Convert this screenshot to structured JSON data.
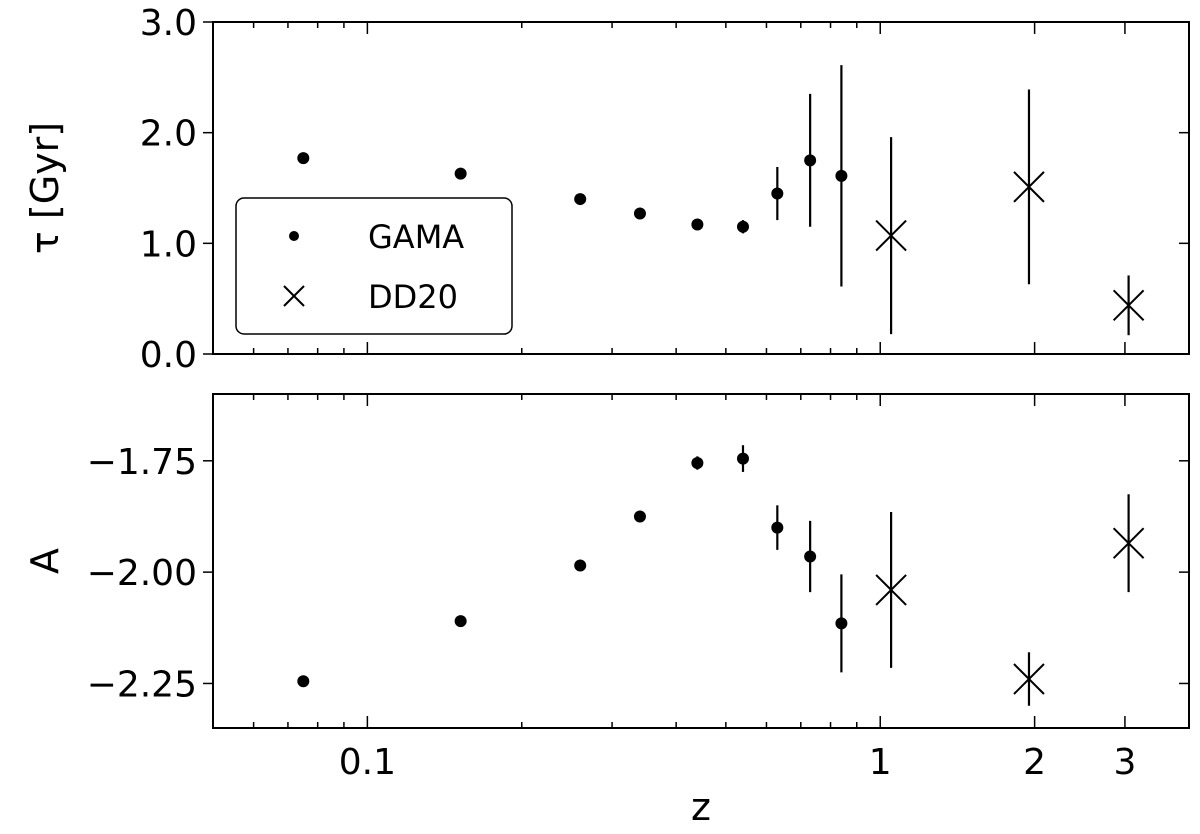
{
  "chart_data": {
    "type": "scatter",
    "x_axis": {
      "label": "z",
      "scale": "log",
      "range": [
        0.05,
        4.0
      ],
      "ticks": [
        {
          "value": 0.1,
          "label": "0.1"
        },
        {
          "value": 1,
          "label": "1"
        },
        {
          "value": 2,
          "label": "2"
        },
        {
          "value": 3,
          "label": "3"
        }
      ]
    },
    "legend": {
      "placement": "center-left of top panel",
      "entries": [
        {
          "label": "GAMA",
          "marker": "dot"
        },
        {
          "label": "DD20",
          "marker": "x"
        }
      ]
    },
    "panels": [
      {
        "ylabel": "τ [Gyr]",
        "ylim": [
          0.0,
          3.0
        ],
        "yticks": [
          {
            "value": 0.0,
            "label": "0.0"
          },
          {
            "value": 1.0,
            "label": "1.0"
          },
          {
            "value": 2.0,
            "label": "2.0"
          },
          {
            "value": 3.0,
            "label": "3.0"
          }
        ],
        "series": [
          {
            "name": "GAMA",
            "marker": "dot",
            "points": [
              {
                "x": 0.075,
                "y": 1.77,
                "err": 0.0
              },
              {
                "x": 0.152,
                "y": 1.63,
                "err": 0.0
              },
              {
                "x": 0.26,
                "y": 1.4,
                "err": 0.0
              },
              {
                "x": 0.34,
                "y": 1.27,
                "err": 0.0
              },
              {
                "x": 0.44,
                "y": 1.17,
                "err": 0.0
              },
              {
                "x": 0.54,
                "y": 1.15,
                "err": 0.06
              },
              {
                "x": 0.63,
                "y": 1.45,
                "err": 0.24
              },
              {
                "x": 0.73,
                "y": 1.75,
                "err": 0.6
              },
              {
                "x": 0.84,
                "y": 1.61,
                "err": 1.0
              }
            ]
          },
          {
            "name": "DD20",
            "marker": "x",
            "points": [
              {
                "x": 1.05,
                "y": 1.07,
                "err": 0.89
              },
              {
                "x": 1.95,
                "y": 1.51,
                "err": 0.88
              },
              {
                "x": 3.05,
                "y": 0.44,
                "err": 0.27
              }
            ]
          }
        ]
      },
      {
        "ylabel": "A",
        "ylim": [
          -2.35,
          -1.6
        ],
        "yticks": [
          {
            "value": -2.25,
            "label": "−2.25"
          },
          {
            "value": -2.0,
            "label": "−2.00"
          },
          {
            "value": -1.75,
            "label": "−1.75"
          }
        ],
        "series": [
          {
            "name": "GAMA",
            "marker": "dot",
            "points": [
              {
                "x": 0.075,
                "y": -2.245,
                "err": 0.0
              },
              {
                "x": 0.152,
                "y": -2.11,
                "err": 0.0
              },
              {
                "x": 0.26,
                "y": -1.985,
                "err": 0.0
              },
              {
                "x": 0.34,
                "y": -1.875,
                "err": 0.0
              },
              {
                "x": 0.44,
                "y": -1.755,
                "err": 0.015
              },
              {
                "x": 0.54,
                "y": -1.745,
                "err": 0.03
              },
              {
                "x": 0.63,
                "y": -1.9,
                "err": 0.05
              },
              {
                "x": 0.73,
                "y": -1.965,
                "err": 0.08
              },
              {
                "x": 0.84,
                "y": -2.115,
                "err": 0.11
              }
            ]
          },
          {
            "name": "DD20",
            "marker": "x",
            "points": [
              {
                "x": 1.05,
                "y": -2.04,
                "err": 0.175
              },
              {
                "x": 1.95,
                "y": -2.24,
                "err": 0.06
              },
              {
                "x": 3.05,
                "y": -1.935,
                "err": 0.11
              }
            ]
          }
        ]
      }
    ]
  }
}
